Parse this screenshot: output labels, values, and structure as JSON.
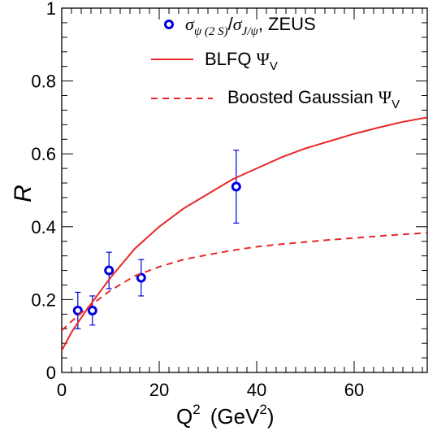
{
  "chart_data": {
    "type": "scatter",
    "xlabel": {
      "base": "Q",
      "sup": "2",
      "unit_pre": "(GeV",
      "unit_sup": "2",
      "unit_post": ")"
    },
    "ylabel": "R",
    "xlim": [
      0,
      75
    ],
    "ylim": [
      0,
      1
    ],
    "x_ticks": [
      0,
      20,
      40,
      60
    ],
    "x_tick_labels": [
      "0",
      "20",
      "40",
      "60"
    ],
    "y_ticks": [
      0,
      0.2,
      0.4,
      0.6,
      0.8,
      1
    ],
    "y_tick_labels": [
      "0",
      "0.2",
      "0.4",
      "0.6",
      "0.8",
      "1"
    ],
    "legend_position": "top-right",
    "legend": [
      {
        "kind": "marker",
        "label": "σψ(2S)/σJ/ψ, ZEUS"
      },
      {
        "kind": "solid",
        "label": "BLFQ ΨV"
      },
      {
        "kind": "dashed",
        "label": "Boosted Gaussian ΨV"
      }
    ],
    "legend_text": {
      "zeus_num": "σ",
      "zeus_num_sub": "ψ (2 S)",
      "zeus_den": "σ",
      "zeus_den_sub": "J/ψ",
      "zeus_suffix": ", ZEUS",
      "blfq": "BLFQ ",
      "blfq_psi": "Ψ",
      "blfq_sub": "V",
      "bg": "Boosted  Gaussian ",
      "bg_psi": "Ψ",
      "bg_sub": "V"
    },
    "series": [
      {
        "name": "σψ(2S)/σJ/ψ, ZEUS",
        "style": "points",
        "color": "#0000e0",
        "points": [
          {
            "x": 3.3,
            "y": 0.17,
            "err": 0.05
          },
          {
            "x": 6.3,
            "y": 0.17,
            "err": 0.04
          },
          {
            "x": 9.7,
            "y": 0.28,
            "err": 0.05
          },
          {
            "x": 16.3,
            "y": 0.26,
            "err": 0.05
          },
          {
            "x": 35.8,
            "y": 0.51,
            "err": 0.1
          }
        ]
      },
      {
        "name": "BLFQ ΨV",
        "style": "solid",
        "color": "#e8282a",
        "x": [
          0,
          2,
          5,
          10,
          15,
          20,
          25,
          30,
          35,
          40,
          45,
          50,
          55,
          60,
          65,
          70,
          75
        ],
        "y": [
          0.06,
          0.11,
          0.17,
          0.26,
          0.34,
          0.4,
          0.45,
          0.49,
          0.53,
          0.56,
          0.59,
          0.615,
          0.635,
          0.655,
          0.672,
          0.688,
          0.7
        ]
      },
      {
        "name": "Boosted Gaussian ΨV",
        "style": "dashed",
        "color": "#e8282a",
        "x": [
          0,
          2,
          5,
          10,
          15,
          20,
          25,
          30,
          35,
          40,
          45,
          50,
          55,
          60,
          65,
          70,
          75
        ],
        "y": [
          0.115,
          0.14,
          0.175,
          0.225,
          0.265,
          0.29,
          0.31,
          0.323,
          0.335,
          0.345,
          0.352,
          0.358,
          0.364,
          0.369,
          0.374,
          0.379,
          0.383
        ]
      }
    ]
  }
}
